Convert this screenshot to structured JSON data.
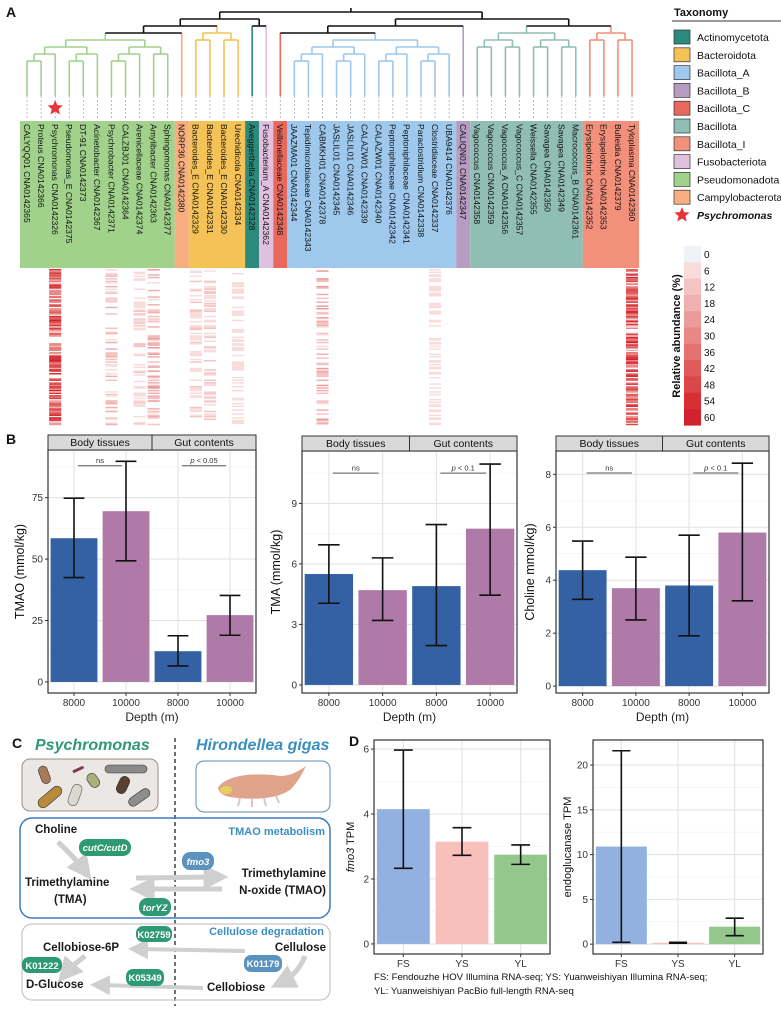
{
  "panel_labels": {
    "a": "A",
    "b": "B",
    "c": "C",
    "d": "D"
  },
  "legend": {
    "taxonomy_title": "Taxonomy",
    "highlight_label": "Psychromonas",
    "highlight_color": "#e8333a",
    "colorbar_title": "Relative abundance (%)",
    "colorbar_ticks": [
      "0",
      "6",
      "12",
      "18",
      "24",
      "30",
      "36",
      "42",
      "48",
      "54",
      "60"
    ],
    "colorbar_colors": [
      "#f1f2f8",
      "#f8dcdc",
      "#f4c4c4",
      "#f0b0b0",
      "#ec9b9b",
      "#e98686",
      "#e57070",
      "#e15a5a",
      "#dd4646",
      "#d82f34",
      "#d2222e"
    ]
  },
  "chart_data": [
    {
      "type": "heatmap",
      "groups": [
        {
          "name": "Actinomycetota",
          "color": "#2b8a7c"
        },
        {
          "name": "Bacteroidota",
          "color": "#f4c257"
        },
        {
          "name": "Bacillota_A",
          "color": "#9ec8ec"
        },
        {
          "name": "Bacillota_B",
          "color": "#b79cc2"
        },
        {
          "name": "Bacillota_C",
          "color": "#e8695c"
        },
        {
          "name": "Bacillota",
          "color": "#90beb4"
        },
        {
          "name": "Bacillota_I",
          "color": "#f3907c"
        },
        {
          "name": "Fusobacteriota",
          "color": "#e0c0de"
        },
        {
          "name": "Pseudomonadota",
          "color": "#a0d28b"
        },
        {
          "name": "Campylobacterota",
          "color": "#f8ae7f"
        }
      ],
      "tips": [
        {
          "label": "CALYQQ01 CNA0142365",
          "group": "Pseudomonadota",
          "peak_abundance_pct": 0
        },
        {
          "label": "Proteus CNA0142366",
          "group": "Pseudomonadota",
          "peak_abundance_pct": 0
        },
        {
          "label": "Psychromonas CNA0142326",
          "group": "Pseudomonadota",
          "peak_abundance_pct": 60,
          "highlight": true
        },
        {
          "label": "Pseudomonas_E CNA0142375",
          "group": "Pseudomonadota",
          "peak_abundance_pct": 0
        },
        {
          "label": "DT-91 CNA0142373",
          "group": "Pseudomonadota",
          "peak_abundance_pct": 0
        },
        {
          "label": "Acinetobacter CNA0142367",
          "group": "Pseudomonadota",
          "peak_abundance_pct": 0
        },
        {
          "label": "Psychrobacter CNA0142371",
          "group": "Pseudomonadota",
          "peak_abundance_pct": 18
        },
        {
          "label": "CALZBJ01 CNA0142364",
          "group": "Pseudomonadota",
          "peak_abundance_pct": 0
        },
        {
          "label": "Arenicellaceae CNA0142374",
          "group": "Pseudomonadota",
          "peak_abundance_pct": 12
        },
        {
          "label": "Amylibacter CNA0142363",
          "group": "Pseudomonadota",
          "peak_abundance_pct": 24
        },
        {
          "label": "Sphingomonas CNA0142377",
          "group": "Pseudomonadota",
          "peak_abundance_pct": 0
        },
        {
          "label": "NORP36 CNA0142380",
          "group": "Campylobacterota",
          "peak_abundance_pct": 0
        },
        {
          "label": "Bacteroides_E CNA0142329",
          "group": "Bacteroidota",
          "peak_abundance_pct": 12
        },
        {
          "label": "Bacteroides_E CNA0142331",
          "group": "Bacteroidota",
          "peak_abundance_pct": 12
        },
        {
          "label": "Bacteroides_E CNA0142330",
          "group": "Bacteroidota",
          "peak_abundance_pct": 0
        },
        {
          "label": "Urechidicola CNA0142334",
          "group": "Bacteroidota",
          "peak_abundance_pct": 6
        },
        {
          "label": "Aveggerthella CNA0142328",
          "group": "Actinomycetota",
          "peak_abundance_pct": 0
        },
        {
          "label": "Fusobacterium_A CNA0142362",
          "group": "Fusobacteriota",
          "peak_abundance_pct": 0
        },
        {
          "label": "Veillonellaceae CNA0142348",
          "group": "Bacillota_C",
          "peak_abundance_pct": 0
        },
        {
          "label": "JAAZMA01 CNA0142344",
          "group": "Bacillota_A",
          "peak_abundance_pct": 0
        },
        {
          "label": "Tepidimicrobiaceae CNA0142343",
          "group": "Bacillota_A",
          "peak_abundance_pct": 0
        },
        {
          "label": "CABMKH01 CNA0142378",
          "group": "Bacillota_A",
          "peak_abundance_pct": 24
        },
        {
          "label": "JASLIL01 CNA0142345",
          "group": "Bacillota_A",
          "peak_abundance_pct": 0
        },
        {
          "label": "JASLIL01 CNA0142346",
          "group": "Bacillota_A",
          "peak_abundance_pct": 0
        },
        {
          "label": "CALAZW01 CNA0142339",
          "group": "Bacillota_A",
          "peak_abundance_pct": 0
        },
        {
          "label": "CALAZW01 CNA0142340",
          "group": "Bacillota_A",
          "peak_abundance_pct": 0
        },
        {
          "label": "Peptoniphilaceae CNA0142342",
          "group": "Bacillota_A",
          "peak_abundance_pct": 0
        },
        {
          "label": "Peptoniphilaceae CNA0142341",
          "group": "Bacillota_A",
          "peak_abundance_pct": 0
        },
        {
          "label": "Paraclostridium CNA0142338",
          "group": "Bacillota_A",
          "peak_abundance_pct": 0
        },
        {
          "label": "Clostridiaceae CNA0142337",
          "group": "Bacillota_A",
          "peak_abundance_pct": 6
        },
        {
          "label": "UBA9414 CNA0142376",
          "group": "Bacillota_A",
          "peak_abundance_pct": 0
        },
        {
          "label": "CALIQN01 CNA0142347",
          "group": "Bacillota_B",
          "peak_abundance_pct": 0
        },
        {
          "label": "Vagococcus CNA0142358",
          "group": "Bacillota",
          "peak_abundance_pct": 0
        },
        {
          "label": "Vagococcus CNA0142359",
          "group": "Bacillota",
          "peak_abundance_pct": 0
        },
        {
          "label": "Vagococcus_A CNA0142356",
          "group": "Bacillota",
          "peak_abundance_pct": 0
        },
        {
          "label": "Vagococcus_C CNA0142357",
          "group": "Bacillota",
          "peak_abundance_pct": 0
        },
        {
          "label": "Weissella CNA0142355",
          "group": "Bacillota",
          "peak_abundance_pct": 0
        },
        {
          "label": "Savagea CNA0142350",
          "group": "Bacillota",
          "peak_abundance_pct": 0
        },
        {
          "label": "Savagea CNA0142349",
          "group": "Bacillota",
          "peak_abundance_pct": 0
        },
        {
          "label": "Macrococcus_B CNA0142361",
          "group": "Bacillota",
          "peak_abundance_pct": 0
        },
        {
          "label": "Erysipelothrix CNA0142352",
          "group": "Bacillota_I",
          "peak_abundance_pct": 0
        },
        {
          "label": "Erysipelothrix CNA0142353",
          "group": "Bacillota_I",
          "peak_abundance_pct": 0
        },
        {
          "label": "Bulleidia CNA0142379",
          "group": "Bacillota_I",
          "peak_abundance_pct": 0
        },
        {
          "label": "Tyloplasma CNA0142360",
          "group": "Bacillota_I",
          "peak_abundance_pct": 60
        }
      ],
      "scale_max_pct": 60
    },
    {
      "type": "bar",
      "facets": [
        "Body tissues",
        "Gut contents"
      ],
      "facet_index": [
        0,
        0,
        1,
        1
      ],
      "categories": [
        "8000",
        "10000",
        "8000",
        "10000"
      ],
      "values": [
        58.5,
        69.5,
        12.5,
        27.2
      ],
      "error_low": [
        42.5,
        49.3,
        6.5,
        19.0
      ],
      "error_high": [
        74.8,
        89.8,
        18.8,
        35.2
      ],
      "colors": [
        "#3461a3",
        "#b07aa8",
        "#3461a3",
        "#b07aa8"
      ],
      "ylabel": "TMAO (mmol/kg)",
      "xlabel": "Depth (m)",
      "ylim": [
        -4.5,
        94.4
      ],
      "yticks": [
        0,
        25,
        50,
        75
      ],
      "significance": [
        {
          "label": "ns",
          "from": 0,
          "to": 1,
          "y": 88
        },
        {
          "label": "p < 0.05",
          "from": 2,
          "to": 3,
          "y": 88
        }
      ]
    },
    {
      "type": "bar",
      "facets": [
        "Body tissues",
        "Gut contents"
      ],
      "facet_index": [
        0,
        0,
        1,
        1
      ],
      "categories": [
        "8000",
        "10000",
        "8000",
        "10000"
      ],
      "values": [
        5.5,
        4.7,
        4.9,
        7.75
      ],
      "error_low": [
        4.05,
        3.2,
        1.95,
        4.45
      ],
      "error_high": [
        6.95,
        6.3,
        7.95,
        10.95
      ],
      "colors": [
        "#3461a3",
        "#b07aa8",
        "#3461a3",
        "#b07aa8"
      ],
      "ylabel": "TMA (mmol/kg)",
      "xlabel": "Depth (m)",
      "ylim": [
        -0.4,
        11.6
      ],
      "yticks": [
        0,
        3,
        6,
        9
      ],
      "significance": [
        {
          "label": "ns",
          "from": 0,
          "to": 1,
          "y": 10.5
        },
        {
          "label": "p < 0.1",
          "from": 2,
          "to": 3,
          "y": 10.5
        }
      ]
    },
    {
      "type": "bar",
      "facets": [
        "Body tissues",
        "Gut contents"
      ],
      "facet_index": [
        0,
        0,
        1,
        1
      ],
      "categories": [
        "8000",
        "10000",
        "8000",
        "10000"
      ],
      "values": [
        4.38,
        3.7,
        3.8,
        5.8
      ],
      "error_low": [
        3.28,
        2.5,
        1.9,
        3.22
      ],
      "error_high": [
        5.48,
        4.87,
        5.7,
        8.42
      ],
      "colors": [
        "#3461a3",
        "#b07aa8",
        "#3461a3",
        "#b07aa8"
      ],
      "ylabel": "Choline mmol/kg)",
      "xlabel": "Depth (m)",
      "ylim": [
        -0.26,
        8.88
      ],
      "yticks": [
        0,
        2,
        4,
        6,
        8
      ],
      "significance": [
        {
          "label": "ns",
          "from": 0,
          "to": 1,
          "y": 8.05
        },
        {
          "label": "p < 0.1",
          "from": 2,
          "to": 3,
          "y": 8.05
        }
      ]
    },
    {
      "type": "bar",
      "categories": [
        "FS",
        "YS",
        "YL"
      ],
      "values": [
        4.15,
        3.15,
        2.75
      ],
      "error_low": [
        2.33,
        2.73,
        2.45
      ],
      "error_high": [
        5.97,
        3.58,
        3.05
      ],
      "colors": [
        "#92b1e0",
        "#f8c0bb",
        "#93c78c"
      ],
      "ylabel": "fmo3 TPM",
      "xlabel": "",
      "ylim": [
        -0.31,
        6.28
      ],
      "yticks": [
        0,
        2,
        4,
        6
      ]
    },
    {
      "type": "bar",
      "categories": [
        "FS",
        "YS",
        "YL"
      ],
      "values": [
        10.9,
        0.15,
        1.95
      ],
      "error_low": [
        0.2,
        0.1,
        0.95
      ],
      "error_high": [
        21.6,
        0.2,
        2.9
      ],
      "colors": [
        "#92b1e0",
        "#f8c0bb",
        "#93c78c"
      ],
      "ylabel": "endoglucanase TPM",
      "xlabel": "",
      "ylim": [
        -1.1,
        22.8
      ],
      "yticks": [
        0,
        5,
        10,
        15,
        20
      ]
    }
  ],
  "panel_c": {
    "left_title": "Psychromonas",
    "right_title": "Hirondellea gigas",
    "tmao_box_title": "TMAO metabolism",
    "cellulose_box_title": "Cellulose degradation",
    "choline": "Choline",
    "tma_line1": "Trimethylamine",
    "tma_line2": "(TMA)",
    "tmao_line1": "Trimethylamine",
    "tmao_line2": "N-oxide (TMAO)",
    "cellobiose6p": "Cellobiose-6P",
    "cellulose": "Cellulose",
    "dglucose": "D-Glucose",
    "cellobiose": "Cellobiose",
    "enzymes": {
      "cutc": "cutC/cutD",
      "fmo3": "fmo3",
      "toryz": "torYZ",
      "k02759": "K02759",
      "k01222": "K01222",
      "k01179": "K01179",
      "k05349": "K05349"
    },
    "bacteria_color": "#2e9a73",
    "host_color": "#5b93be"
  },
  "caption_d": [
    "FS: Fendouzhe HOV Illumina RNA-seq; YS: Yuanweishiyan Illumina RNA-seq;",
    "YL: Yuanweishiyan PacBio full-length RNA-seq"
  ]
}
